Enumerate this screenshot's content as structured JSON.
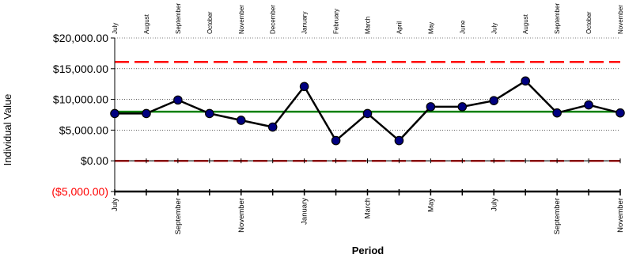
{
  "chart_data": {
    "type": "line",
    "title": "",
    "xlabel": "Period",
    "ylabel": "Individual Value",
    "ylim": [
      -5000,
      20000
    ],
    "y_ticks": [
      {
        "value": -5000,
        "label": "($5,000.00)",
        "color": "#ff0000"
      },
      {
        "value": 0,
        "label": "$0.00",
        "color": "#000000"
      },
      {
        "value": 5000,
        "label": "$5,000.00",
        "color": "#000000"
      },
      {
        "value": 10000,
        "label": "$10,000.00",
        "color": "#000000"
      },
      {
        "value": 15000,
        "label": "$15,000.00",
        "color": "#000000"
      },
      {
        "value": 20000,
        "label": "$20,000.00",
        "color": "#000000"
      }
    ],
    "categories": [
      "July",
      "August",
      "September",
      "October",
      "November",
      "December",
      "January",
      "February",
      "March",
      "April",
      "May",
      "June",
      "July",
      "August",
      "September",
      "October",
      "November"
    ],
    "top_axis_labels": [
      "July",
      "August",
      "September",
      "October",
      "November",
      "December",
      "January",
      "February",
      "March",
      "April",
      "May",
      "June",
      "July",
      "August",
      "September",
      "October",
      "November"
    ],
    "bottom_axis_labels": [
      "July",
      "",
      "September",
      "",
      "November",
      "",
      "January",
      "",
      "March",
      "",
      "May",
      "",
      "July",
      "",
      "September",
      "",
      "November"
    ],
    "series": [
      {
        "values": [
          7700,
          7700,
          9900,
          7700,
          6600,
          5500,
          12100,
          3300,
          7700,
          3300,
          8800,
          8800,
          9800,
          13000,
          7800,
          9100,
          7800
        ]
      }
    ],
    "reference_lines": [
      {
        "value": 16100,
        "style": "dashed",
        "color": "#ff0000"
      },
      {
        "value": 8000,
        "style": "solid",
        "color": "#008000"
      },
      {
        "value": 0,
        "style": "dashed",
        "color": "#ff0000"
      }
    ],
    "grid": true,
    "colors": {
      "line": "#000000",
      "marker_fill": "#000080",
      "marker_stroke": "#000000"
    }
  }
}
